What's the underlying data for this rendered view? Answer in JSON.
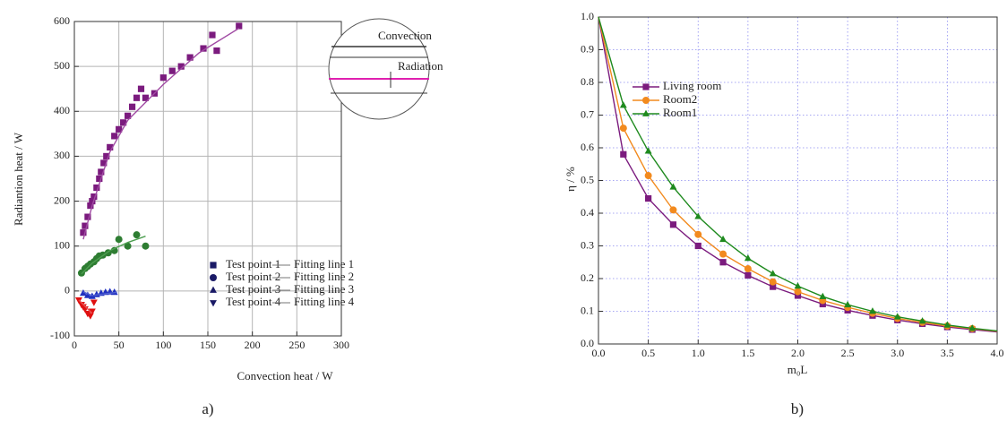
{
  "chart_data": [
    {
      "type": "scatter",
      "xlabel": "Convection heat / W",
      "ylabel": "Radiantion heat / W",
      "caption": "a)",
      "xlim": [
        0,
        300
      ],
      "xticks": [
        0,
        50,
        100,
        150,
        200,
        250,
        300
      ],
      "ylim": [
        -100,
        600
      ],
      "yticks": [
        -100,
        0,
        100,
        200,
        300,
        400,
        500,
        600
      ],
      "grid": true,
      "legend": "lower right",
      "annotations": [
        "Convection",
        "Radiation"
      ],
      "series": [
        {
          "name": "Test point 1",
          "color": "#7b1b7e",
          "mode": "markers",
          "marker": "square",
          "x": [
            10,
            12,
            15,
            18,
            20,
            22,
            25,
            28,
            30,
            33,
            36,
            40,
            45,
            50,
            55,
            60,
            65,
            70,
            75,
            80,
            90,
            100,
            110,
            120,
            130,
            145,
            155,
            160,
            185
          ],
          "values": [
            130,
            145,
            165,
            190,
            200,
            210,
            230,
            250,
            265,
            285,
            300,
            320,
            345,
            360,
            375,
            390,
            410,
            430,
            450,
            430,
            440,
            475,
            490,
            500,
            520,
            540,
            570,
            535,
            590
          ]
        },
        {
          "name": "Fitting line 1",
          "color": "#a04aa3",
          "mode": "line",
          "x": [
            10,
            20,
            40,
            60,
            100,
            140,
            185
          ],
          "values": [
            115,
            190,
            310,
            380,
            460,
            530,
            585
          ]
        },
        {
          "name": "Test point 2",
          "color": "#2e7d32",
          "mode": "markers",
          "marker": "circle",
          "x": [
            8,
            12,
            15,
            18,
            22,
            25,
            28,
            32,
            38,
            45,
            50,
            60,
            70,
            80
          ],
          "values": [
            40,
            50,
            55,
            60,
            65,
            72,
            78,
            80,
            85,
            90,
            115,
            100,
            125,
            100
          ]
        },
        {
          "name": "Fitting line 2",
          "color": "#4d9e50",
          "mode": "line",
          "x": [
            8,
            20,
            40,
            60,
            80
          ],
          "values": [
            38,
            62,
            90,
            108,
            122
          ]
        },
        {
          "name": "Test point 3",
          "color": "#2030c0",
          "mode": "markers",
          "marker": "triangle",
          "x": [
            10,
            15,
            20,
            25,
            30,
            35,
            40,
            45
          ],
          "values": [
            -5,
            -10,
            -12,
            -8,
            -5,
            -3,
            -2,
            -3
          ]
        },
        {
          "name": "Fitting line 3",
          "color": "#5060d0",
          "mode": "line",
          "x": [
            10,
            20,
            48
          ],
          "values": [
            -2,
            -10,
            -3
          ]
        },
        {
          "name": "Test point 4",
          "color": "#e01010",
          "mode": "markers",
          "marker": "triangle-down",
          "x": [
            5,
            8,
            10,
            12,
            15,
            18,
            20,
            22
          ],
          "values": [
            -20,
            -30,
            -35,
            -40,
            -50,
            -55,
            -45,
            -25
          ]
        },
        {
          "name": "Fitting line 4",
          "color": "#e85050",
          "mode": "line",
          "x": [
            5,
            20
          ],
          "values": [
            -20,
            -50
          ]
        }
      ]
    },
    {
      "type": "line",
      "xlabel": "m₀L",
      "ylabel": "η / %",
      "caption": "b)",
      "xlim": [
        0,
        4
      ],
      "xticks": [
        {
          "value": 0,
          "label": "0.0"
        },
        0.5,
        {
          "value": 1,
          "label": "1.0"
        },
        1.5,
        {
          "value": 2,
          "label": "2.0"
        },
        2.5,
        {
          "value": 3,
          "label": "3.0"
        },
        3.5,
        {
          "value": 4,
          "label": "4.0"
        }
      ],
      "ylim": [
        0,
        1
      ],
      "yticks": [
        {
          "value": 0,
          "label": "0.0"
        },
        0.1,
        0.2,
        0.3,
        0.4,
        0.5,
        0.6,
        0.7,
        0.8,
        0.9,
        {
          "value": 1,
          "label": "1.0"
        }
      ],
      "grid": true,
      "legend": "upper left",
      "x": [
        0,
        0.25,
        0.5,
        0.75,
        1,
        1.25,
        1.5,
        1.75,
        2,
        2.25,
        2.5,
        2.75,
        3,
        3.25,
        3.5,
        3.75,
        4
      ],
      "series": [
        {
          "name": "Living room",
          "color": "#7b1b7e",
          "marker": "square",
          "values": [
            1,
            0.58,
            0.445,
            0.365,
            0.3,
            0.25,
            0.21,
            0.175,
            0.148,
            0.122,
            0.103,
            0.087,
            0.073,
            0.062,
            0.052,
            0.044,
            0.037
          ]
        },
        {
          "name": "Room2",
          "color": "#f28a1e",
          "marker": "circle",
          "values": [
            1,
            0.66,
            0.515,
            0.41,
            0.335,
            0.275,
            0.23,
            0.19,
            0.16,
            0.133,
            0.112,
            0.094,
            0.078,
            0.066,
            0.055,
            0.047,
            0.039
          ]
        },
        {
          "name": "Room1",
          "color": "#1e8a1e",
          "marker": "triangle",
          "values": [
            1,
            0.73,
            0.59,
            0.48,
            0.39,
            0.32,
            0.262,
            0.215,
            0.177,
            0.145,
            0.12,
            0.1,
            0.083,
            0.07,
            0.058,
            0.048,
            0.04
          ]
        }
      ]
    }
  ]
}
